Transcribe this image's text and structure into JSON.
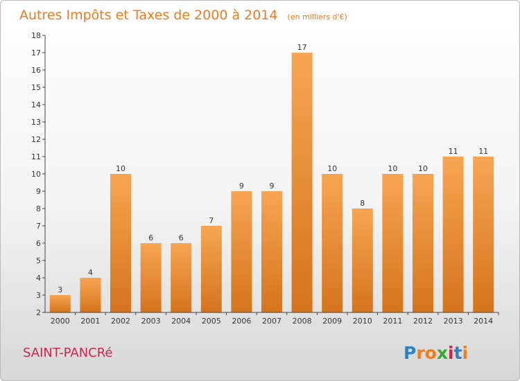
{
  "chart_data": {
    "type": "bar",
    "title": "Autres Impôts et Taxes de 2000 à 2014",
    "subtitle": "(en milliers d'€)",
    "categories": [
      "2000",
      "2001",
      "2002",
      "2003",
      "2004",
      "2005",
      "2006",
      "2007",
      "2008",
      "2009",
      "2010",
      "2011",
      "2012",
      "2013",
      "2014"
    ],
    "values": [
      3,
      4,
      10,
      6,
      6,
      7,
      9,
      9,
      17,
      10,
      8,
      10,
      10,
      11,
      11
    ],
    "xlabel": "",
    "ylabel": "",
    "ylim": [
      2,
      18
    ],
    "yticks": [
      2,
      3,
      4,
      5,
      6,
      7,
      8,
      9,
      10,
      11,
      12,
      13,
      14,
      15,
      16,
      17,
      18
    ],
    "grid": false,
    "legend": "none",
    "bar_color_top": "#f7a552",
    "bar_color_bottom": "#d5741c"
  },
  "commune": "SAINT-PANCRé",
  "brand": {
    "name": "Proxiti",
    "letters": [
      {
        "ch": "P",
        "color": "#2f7fc1"
      },
      {
        "ch": "r",
        "color": "#ef7f1a"
      },
      {
        "ch": "o",
        "color": "#ef7f1a"
      },
      {
        "ch": "x",
        "color": "#3aa63a"
      },
      {
        "ch": "i",
        "color": "#c8264f"
      },
      {
        "ch": "t",
        "color": "#2f7fc1"
      },
      {
        "ch": "i",
        "color": "#ef7f1a"
      }
    ]
  }
}
